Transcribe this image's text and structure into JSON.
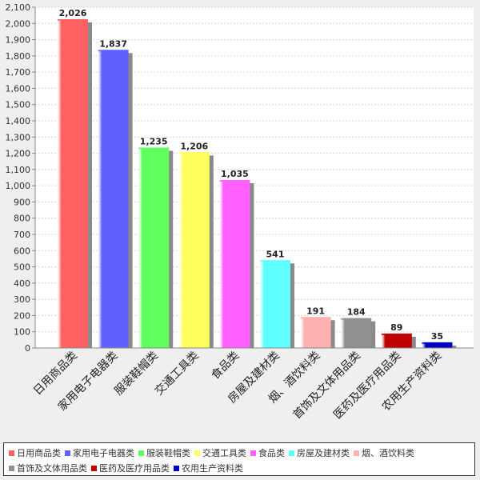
{
  "chart_data": {
    "type": "bar",
    "title": "",
    "xlabel": "",
    "ylabel": "",
    "ylim": [
      0,
      2100
    ],
    "ytick_step": 100,
    "grid": true,
    "legend_position": "bottom",
    "categories": [
      "日用商品类",
      "家用电子电器类",
      "服装鞋帽类",
      "交通工具类",
      "食品类",
      "房屋及建材类",
      "烟、酒饮料类",
      "首饰及文体用品类",
      "医药及医疗用品类",
      "农用生产资料类"
    ],
    "values": [
      2026,
      1837,
      1235,
      1206,
      1035,
      541,
      191,
      184,
      89,
      35
    ],
    "value_labels": [
      "2,026",
      "1,837",
      "1,235",
      "1,206",
      "1,035",
      "541",
      "191",
      "184",
      "89",
      "35"
    ],
    "colors": [
      "#ff6060",
      "#6060ff",
      "#60ff60",
      "#ffff60",
      "#ff60ff",
      "#60ffff",
      "#ffb0b0",
      "#909090",
      "#c00000",
      "#0000c0"
    ],
    "ytick_labels": [
      "0",
      "100",
      "200",
      "300",
      "400",
      "500",
      "600",
      "700",
      "800",
      "900",
      "1,000",
      "1,100",
      "1,200",
      "1,300",
      "1,400",
      "1,500",
      "1,600",
      "1,700",
      "1,800",
      "1,900",
      "2,000",
      "2,100"
    ]
  }
}
